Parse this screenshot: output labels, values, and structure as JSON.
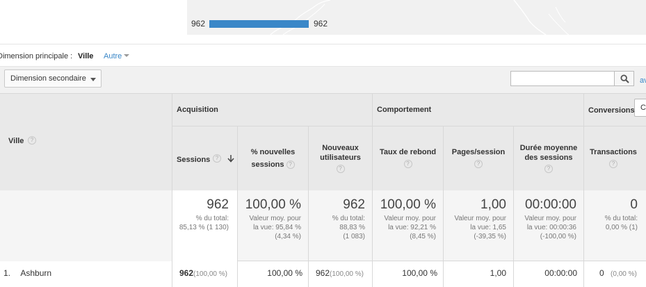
{
  "legend": {
    "min": "962",
    "max": "962",
    "color": "#3a87c8"
  },
  "primary_dimension": {
    "label": "Dimension principale :",
    "value": "Ville",
    "other": "Autre"
  },
  "controls": {
    "secondary_dimension": "Dimension secondaire",
    "search_placeholder": "",
    "advanced_link": "av"
  },
  "table": {
    "first_col_header": "Ville",
    "groups": {
      "acquisition": "Acquisition",
      "behavior": "Comportement",
      "conversions": "Conversions",
      "conversions_select": "Co"
    },
    "columns": {
      "sessions": "Sessions",
      "new_sessions_l1": "% nouvelles",
      "new_sessions_l2": "sessions",
      "new_users_l1": "Nouveaux",
      "new_users_l2": "utilisateurs",
      "bounce": "Taux de rebond",
      "pages": "Pages/session",
      "duration_l1": "Durée moyenne",
      "duration_l2": "des sessions",
      "transactions": "Transactions"
    },
    "totals": {
      "sessions": {
        "main": "962",
        "sub1": "% du total:",
        "sub2": "85,13 % (1 130)"
      },
      "new_sessions": {
        "main": "100,00 %",
        "sub1": "Valeur moy. pour",
        "sub2": "la vue: 95,84 %",
        "sub3": "(4,34 %)"
      },
      "new_users": {
        "main": "962",
        "sub1": "% du total:",
        "sub2": "88,83 %",
        "sub3": "(1 083)"
      },
      "bounce": {
        "main": "100,00 %",
        "sub1": "Valeur moy. pour",
        "sub2": "la vue: 92,21 %",
        "sub3": "(8,45 %)"
      },
      "pages": {
        "main": "1,00",
        "sub1": "Valeur moy. pour",
        "sub2": "la vue: 1,65",
        "sub3": "(-39,35 %)"
      },
      "duration": {
        "main": "00:00:00",
        "sub1": "Valeur moy. pour",
        "sub2": "la vue: 00:00:36",
        "sub3": "(-100,00 %)"
      },
      "transactions": {
        "main": "0",
        "sub1": "% du total:",
        "sub2": "0,00 % (1)"
      }
    },
    "rows": [
      {
        "index": "1.",
        "city": "Ashburn",
        "sessions": "962",
        "sessions_pct": "(100,00 %)",
        "new_sessions": "100,00 %",
        "new_users": "962",
        "new_users_pct": "(100,00 %)",
        "bounce": "100,00 %",
        "pages": "1,00",
        "duration": "00:00:00",
        "transactions": "0",
        "transactions_pct": "(0,00 %)"
      }
    ]
  }
}
